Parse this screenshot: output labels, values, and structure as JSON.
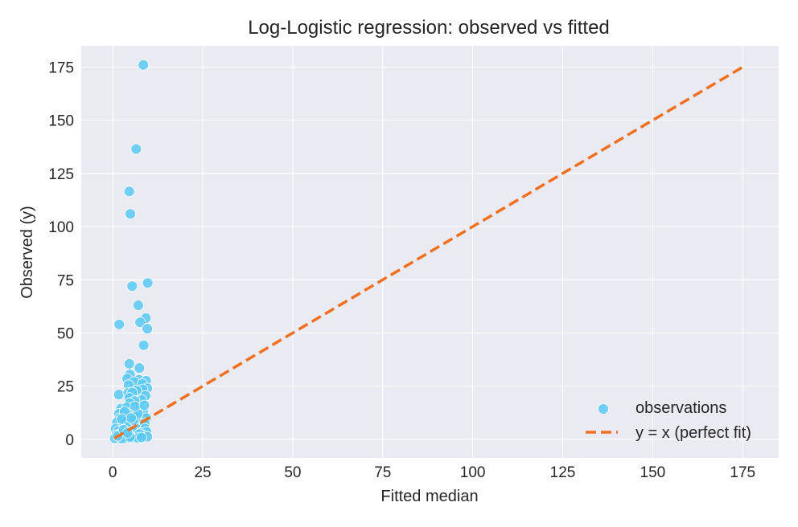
{
  "chart_data": {
    "type": "scatter",
    "title": "Log-Logistic regression: observed vs fitted",
    "xlabel": "Fitted median",
    "ylabel": "Observed (y)",
    "xlim": [
      -8.75,
      185
    ],
    "ylim": [
      -8.75,
      185
    ],
    "xticks": [
      0,
      25,
      50,
      75,
      100,
      125,
      150,
      175
    ],
    "yticks": [
      0,
      25,
      50,
      75,
      100,
      125,
      150,
      175
    ],
    "grid": true,
    "legend": {
      "placement": "bottom-right"
    },
    "colors": {
      "points": "#5bc8f5",
      "line": "#f07020",
      "background": "#eaeaf2",
      "grid": "#ffffff"
    },
    "series": [
      {
        "name": "observations",
        "kind": "scatter",
        "points": [
          [
            8.5,
            176
          ],
          [
            6.5,
            136.5
          ],
          [
            4.6,
            116.5
          ],
          [
            4.9,
            106
          ],
          [
            5.4,
            72
          ],
          [
            9.7,
            73.5
          ],
          [
            7.1,
            63
          ],
          [
            1.8,
            54
          ],
          [
            9.2,
            57
          ],
          [
            7.6,
            55
          ],
          [
            9.6,
            52
          ],
          [
            8.6,
            44.2
          ],
          [
            4.6,
            35.5
          ],
          [
            7.4,
            33.5
          ],
          [
            4.8,
            30.5
          ],
          [
            4.0,
            28.5
          ],
          [
            7.3,
            28
          ],
          [
            9.3,
            27.5
          ],
          [
            5.9,
            27
          ],
          [
            4.4,
            25.5
          ],
          [
            8.2,
            26
          ],
          [
            9.6,
            24
          ],
          [
            8.3,
            23.5
          ],
          [
            6.6,
            23
          ],
          [
            1.7,
            21
          ],
          [
            4.3,
            21.8
          ],
          [
            5.4,
            22
          ],
          [
            9.1,
            20.5
          ],
          [
            4.6,
            19.5
          ],
          [
            8.0,
            18.5
          ],
          [
            6.1,
            18
          ],
          [
            4.7,
            17
          ],
          [
            2.3,
            14.5
          ],
          [
            3.9,
            15
          ],
          [
            7.6,
            14
          ],
          [
            8.5,
            12.5
          ],
          [
            1.7,
            12
          ],
          [
            4.6,
            11.5
          ],
          [
            6.3,
            11
          ],
          [
            9.3,
            10
          ],
          [
            2.0,
            10
          ],
          [
            1.2,
            8
          ],
          [
            3.6,
            8.5
          ],
          [
            5.0,
            7
          ],
          [
            7.2,
            8
          ],
          [
            8.9,
            7.5
          ],
          [
            2.8,
            6
          ],
          [
            4.2,
            6.5
          ],
          [
            6.5,
            5
          ],
          [
            9.0,
            5
          ],
          [
            0.8,
            5
          ],
          [
            1.6,
            4
          ],
          [
            3.1,
            3.5
          ],
          [
            5.6,
            4
          ],
          [
            7.8,
            3
          ],
          [
            9.4,
            3.5
          ],
          [
            2.1,
            2.5
          ],
          [
            4.4,
            2
          ],
          [
            6.0,
            1.5
          ],
          [
            8.4,
            2
          ],
          [
            1.0,
            2
          ],
          [
            7.4,
            2.5
          ],
          [
            3.5,
            1
          ],
          [
            5.3,
            0.8
          ],
          [
            9.6,
            1.2
          ],
          [
            0.6,
            0.5
          ],
          [
            2.6,
            0.3
          ],
          [
            6.9,
            0.6
          ],
          [
            8.0,
            0.9
          ],
          [
            4.8,
            1.1
          ],
          [
            1.4,
            1.6
          ],
          [
            3.0,
            4.5
          ],
          [
            5.8,
            9
          ],
          [
            7.0,
            12
          ],
          [
            3.3,
            13
          ],
          [
            6.2,
            15.5
          ],
          [
            8.8,
            16
          ],
          [
            5.1,
            10
          ],
          [
            2.5,
            9.5
          ],
          [
            4.1,
            3
          ]
        ]
      },
      {
        "name": "y = x (perfect fit)",
        "kind": "line",
        "points": [
          [
            0.5,
            0.5
          ],
          [
            175,
            175
          ]
        ]
      }
    ]
  }
}
